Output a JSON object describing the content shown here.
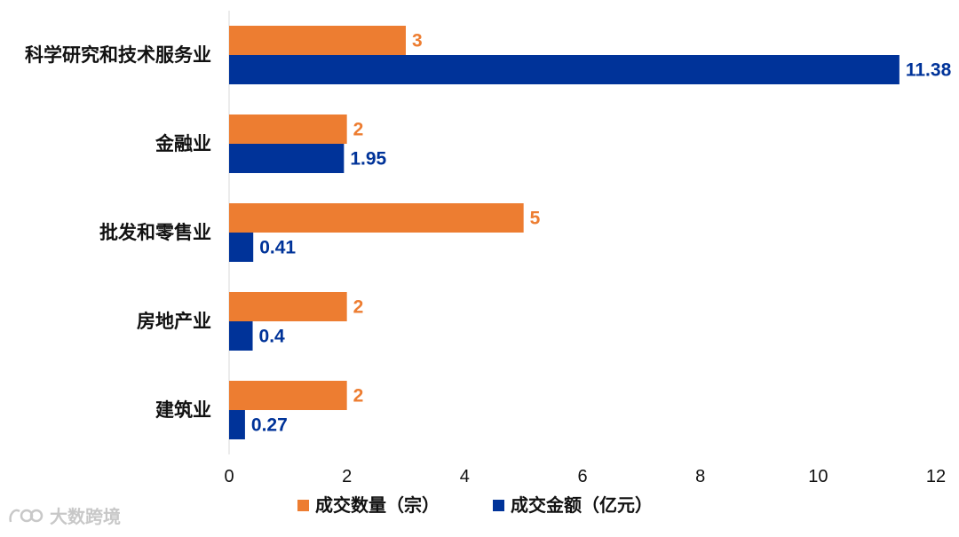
{
  "chart_data": {
    "type": "bar",
    "orientation": "horizontal",
    "categories": [
      "科学研究和技术服务业",
      "金融业",
      "批发和零售业",
      "房地产业",
      "建筑业"
    ],
    "series": [
      {
        "name": "成交数量（宗）",
        "values": [
          3,
          2,
          5,
          2,
          2
        ],
        "color": "#ED7D31"
      },
      {
        "name": "成交金额（亿元）",
        "values": [
          11.38,
          1.95,
          0.41,
          0.4,
          0.27
        ],
        "color": "#003399"
      }
    ],
    "data_labels": [
      [
        "3",
        "2",
        "5",
        "2",
        "2"
      ],
      [
        "11.38",
        "1.95",
        "0.41",
        "0.4",
        "0.27"
      ]
    ],
    "x_ticks": [
      "0",
      "2",
      "4",
      "6",
      "8",
      "10",
      "12"
    ],
    "xlim": [
      0,
      12
    ],
    "grid": false,
    "legend_position": "bottom"
  },
  "watermark": {
    "text": "大数跨境",
    "icon": "brand-logo-icon"
  }
}
